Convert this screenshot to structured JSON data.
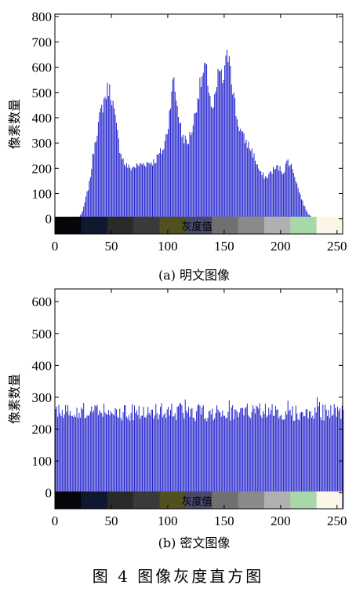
{
  "figure_caption": "图 4   图像灰度直方图",
  "colorbar_label": "灰度值",
  "colorbar_segments": [
    "#05050a",
    "#101830",
    "#2a2a2a",
    "#3a3a3a",
    "#505020",
    "#484868",
    "#707070",
    "#8a8a8a",
    "#b0b0b0",
    "#a8d8a8",
    "#fbf6e8"
  ],
  "chart_data": [
    {
      "type": "bar",
      "caption": "(a) 明文图像",
      "ylabel": "像素数量",
      "xlabel": "灰度值",
      "xlim": [
        0,
        255
      ],
      "ylim": [
        -60,
        810
      ],
      "xticks": [
        0,
        50,
        100,
        150,
        200,
        250
      ],
      "yticks": [
        0,
        100,
        200,
        300,
        400,
        500,
        600,
        700,
        800
      ],
      "bar_color": "#2222cc",
      "grid": false,
      "envelope": [
        [
          0,
          0
        ],
        [
          20,
          0
        ],
        [
          24,
          30
        ],
        [
          30,
          150
        ],
        [
          35,
          330
        ],
        [
          40,
          450
        ],
        [
          44,
          520
        ],
        [
          47,
          560
        ],
        [
          50,
          520
        ],
        [
          53,
          420
        ],
        [
          57,
          300
        ],
        [
          61,
          235
        ],
        [
          66,
          215
        ],
        [
          72,
          225
        ],
        [
          78,
          235
        ],
        [
          84,
          240
        ],
        [
          88,
          245
        ],
        [
          92,
          275
        ],
        [
          96,
          300
        ],
        [
          100,
          400
        ],
        [
          103,
          560
        ],
        [
          105,
          580
        ],
        [
          108,
          480
        ],
        [
          112,
          360
        ],
        [
          117,
          320
        ],
        [
          122,
          400
        ],
        [
          126,
          520
        ],
        [
          130,
          600
        ],
        [
          133,
          640
        ],
        [
          136,
          560
        ],
        [
          139,
          450
        ],
        [
          142,
          520
        ],
        [
          145,
          640
        ],
        [
          148,
          580
        ],
        [
          152,
          680
        ],
        [
          154,
          720
        ],
        [
          157,
          560
        ],
        [
          161,
          420
        ],
        [
          166,
          350
        ],
        [
          170,
          320
        ],
        [
          174,
          290
        ],
        [
          178,
          240
        ],
        [
          182,
          190
        ],
        [
          187,
          175
        ],
        [
          192,
          205
        ],
        [
          197,
          220
        ],
        [
          202,
          200
        ],
        [
          206,
          250
        ],
        [
          211,
          205
        ],
        [
          215,
          130
        ],
        [
          220,
          60
        ],
        [
          224,
          20
        ],
        [
          228,
          5
        ],
        [
          232,
          0
        ],
        [
          255,
          0
        ]
      ]
    },
    {
      "type": "bar",
      "caption": "(b) 密文图像",
      "ylabel": "像素数量",
      "xlabel": "灰度值",
      "xlim": [
        0,
        255
      ],
      "ylim": [
        -50,
        640
      ],
      "xticks": [
        0,
        50,
        100,
        150,
        200,
        250
      ],
      "yticks": [
        0,
        100,
        200,
        300,
        400,
        500,
        600
      ],
      "bar_color": "#2222cc",
      "grid": false,
      "mean_count": 256,
      "range": [
        225,
        300
      ]
    }
  ]
}
